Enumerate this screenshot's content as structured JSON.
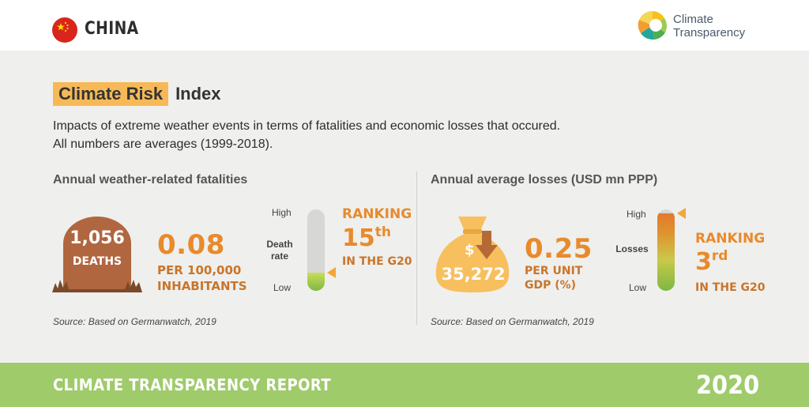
{
  "header": {
    "country": "CHINA",
    "logo_line1": "Climate",
    "logo_line2": "Transparency"
  },
  "title": {
    "highlight": "Climate Risk",
    "rest": "Index"
  },
  "description": {
    "line1": "Impacts of extreme weather events in terms of fatalities and economic losses that occured.",
    "line2": "All numbers are averages (1999-2018)."
  },
  "fatalities": {
    "heading": "Annual weather-related fatalities",
    "deaths_value": "1,056",
    "deaths_label": "DEATHS",
    "rate_value": "0.08",
    "rate_unit_line1": "PER 100,000",
    "rate_unit_line2": "INHABITANTS",
    "axis_high": "High",
    "axis_low": "Low",
    "gauge_label_line1": "Death",
    "gauge_label_line2": "rate",
    "gauge_level": 0.22,
    "ranking_word": "RANKING",
    "ranking_number": "15",
    "ranking_suffix": "th",
    "ranking_group": "IN THE G20",
    "source": "Source: Based on Germanwatch, 2019"
  },
  "losses": {
    "heading": "Annual average losses (USD mn PPP)",
    "bag_symbol": "$",
    "bag_value": "35,272",
    "value": "0.25",
    "unit_line1": "PER UNIT",
    "unit_line2": "GDP (%)",
    "axis_high": "High",
    "axis_low": "Low",
    "gauge_label": "Losses",
    "gauge_level": 0.95,
    "ranking_word": "RANKING",
    "ranking_number": "3",
    "ranking_suffix": "rd",
    "ranking_group": "IN THE G20",
    "source": "Source: Based on Germanwatch, 2019"
  },
  "footer": {
    "report": "CLIMATE TRANSPARENCY REPORT",
    "year": "2020"
  },
  "colors": {
    "accent_orange": "#e88a2c",
    "highlight_yellow": "#f7b957",
    "tombstone_brown": "#b0663f",
    "bag_yellow": "#f8bf5e",
    "footer_green": "#9fcb6b",
    "flag_red": "#d8261c"
  },
  "icons": {
    "flag": "china-flag-icon",
    "logo": "climate-transparency-logo-icon",
    "tombstone": "tombstone-icon",
    "money_bag": "money-bag-icon",
    "down_arrow": "down-arrow-icon"
  }
}
